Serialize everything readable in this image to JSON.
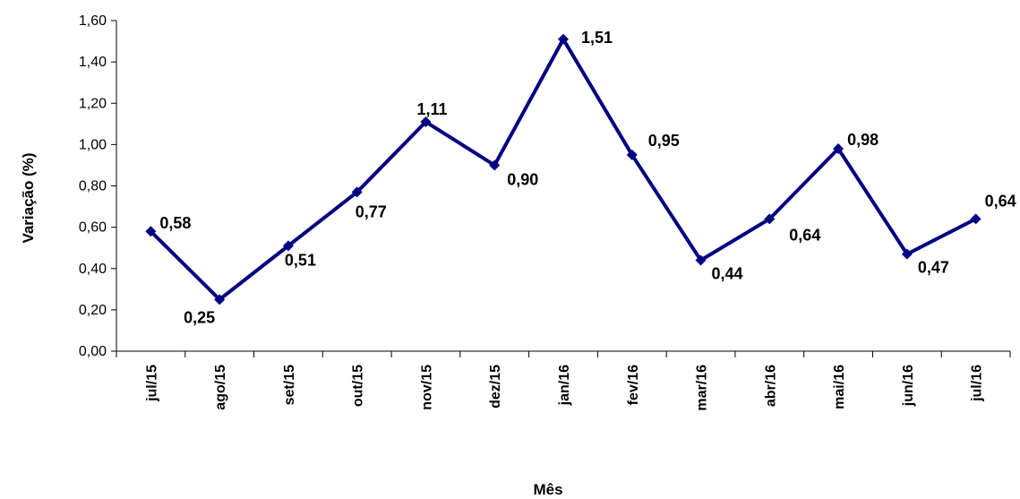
{
  "chart_data": {
    "type": "line",
    "title": "",
    "xlabel": "Mês",
    "ylabel": "Variação (%)",
    "ylim": [
      0,
      1.6
    ],
    "y_ticks": [
      "0,00",
      "0,20",
      "0,40",
      "0,60",
      "0,80",
      "1,00",
      "1,20",
      "1,40",
      "1,60"
    ],
    "y_tick_values": [
      0,
      0.2,
      0.4,
      0.6,
      0.8,
      1.0,
      1.2,
      1.4,
      1.6
    ],
    "categories": [
      "jul/15",
      "ago/15",
      "set/15",
      "out/15",
      "nov/15",
      "dez/15",
      "jan/16",
      "fev/16",
      "mar/16",
      "abr/16",
      "mai/16",
      "jun/16",
      "jul/16"
    ],
    "series": [
      {
        "values": [
          0.58,
          0.25,
          0.51,
          0.77,
          1.11,
          0.9,
          1.51,
          0.95,
          0.44,
          0.64,
          0.98,
          0.47,
          0.64
        ],
        "labels": [
          "0,58",
          "0,25",
          "0,51",
          "0,77",
          "1,11",
          "0,90",
          "1,51",
          "0,95",
          "0,44",
          "0,64",
          "0,98",
          "0,47",
          "0,64"
        ],
        "color": "#000080",
        "marker": "diamond"
      }
    ],
    "grid": false,
    "legend": "none"
  }
}
